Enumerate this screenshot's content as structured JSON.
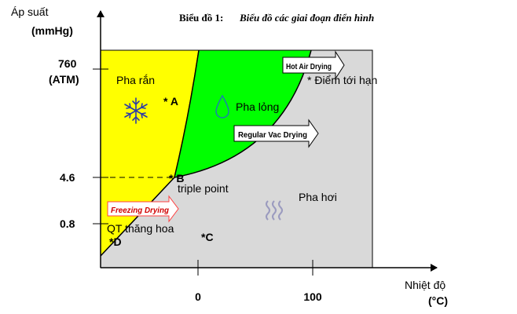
{
  "title": {
    "prefix": "Biểu đồ 1:",
    "text": "Biểu đồ các giai đoạn điển hình"
  },
  "axes": {
    "y_label_line1": "Áp suất",
    "y_label_line2": "(mmHg)",
    "x_label_line1": "Nhiệt độ",
    "x_label_line2": "(°C)",
    "y_ticks": [
      {
        "label": "760",
        "sublabel": "(ATM)"
      },
      {
        "label": "4.6",
        "sublabel": ""
      },
      {
        "label": "0.8",
        "sublabel": ""
      }
    ],
    "x_ticks": [
      "0",
      "100"
    ]
  },
  "regions": {
    "solid": "Pha rắn",
    "liquid": "Pha lỏng",
    "vapor": "Pha hơi"
  },
  "points": {
    "A": "* A",
    "B": "* B",
    "C": "*C",
    "D": "*D",
    "critical_point": "* Điểm tới hạn",
    "triple_point": "triple point"
  },
  "processes": {
    "hot_air": "Hot Air Drying",
    "regular_vac": "Regular Vac Drying",
    "freezing": "Freezing Drying",
    "sublimation": "QT thăng hoa"
  },
  "colors": {
    "solid": "#ffff00",
    "liquid": "#00ff00",
    "vapor": "#d9d9d9",
    "arrow_fill": "#ffffff",
    "freeze_arrow_fill": "#ff8080",
    "snowflake": "#2b3aa8",
    "drop": "#1a7fb0",
    "steam": "#9b9bbf"
  },
  "icons": [
    "snowflake-icon",
    "water-drop-icon",
    "steam-icon"
  ]
}
